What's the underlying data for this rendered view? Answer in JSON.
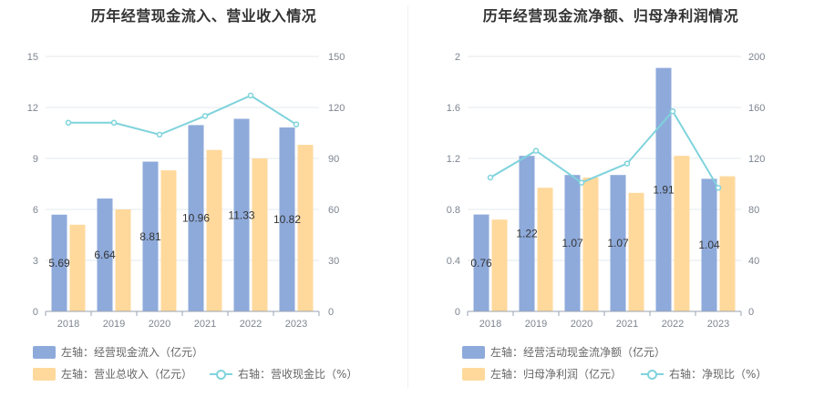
{
  "chart_data": [
    {
      "type": "bar",
      "title": "历年经营现金流入、营业收入情况",
      "categories": [
        "2018",
        "2019",
        "2020",
        "2021",
        "2022",
        "2023"
      ],
      "y_left": {
        "ylim": [
          0,
          15
        ],
        "ticks": [
          "0",
          "3",
          "6",
          "9",
          "12",
          "15"
        ]
      },
      "y_right": {
        "ylim": [
          0,
          150
        ],
        "ticks": [
          "0",
          "30",
          "60",
          "90",
          "120",
          "150"
        ]
      },
      "series": [
        {
          "name": "左轴：经营现金流入（亿元）",
          "kind": "bar",
          "axis": "left",
          "color": "#8eaadb",
          "values": [
            5.69,
            6.64,
            8.81,
            10.96,
            11.33,
            10.82
          ],
          "labels": [
            "5.69",
            "6.64",
            "8.81",
            "10.96",
            "11.33",
            "10.82"
          ]
        },
        {
          "name": "左轴：营业总收入（亿元）",
          "kind": "bar",
          "axis": "left",
          "color": "#ffd99c",
          "values": [
            5.1,
            6.0,
            8.3,
            9.5,
            9.0,
            9.8
          ]
        },
        {
          "name": "右轴：营收现金比（%）",
          "kind": "line",
          "axis": "right",
          "color": "#7fd3dc",
          "values": [
            111,
            111,
            104,
            115,
            127,
            110
          ]
        }
      ],
      "grid": true
    },
    {
      "type": "bar",
      "title": "历年经营现金流净额、归母净利润情况",
      "categories": [
        "2018",
        "2019",
        "2020",
        "2021",
        "2022",
        "2023"
      ],
      "y_left": {
        "ylim": [
          0,
          2
        ],
        "ticks": [
          "0",
          "0.4",
          "0.8",
          "1.2",
          "1.6",
          "2"
        ]
      },
      "y_right": {
        "ylim": [
          0,
          200
        ],
        "ticks": [
          "0",
          "40",
          "80",
          "120",
          "160",
          "200"
        ]
      },
      "series": [
        {
          "name": "左轴：经营活动现金流净额（亿元）",
          "kind": "bar",
          "axis": "left",
          "color": "#8eaadb",
          "values": [
            0.76,
            1.22,
            1.07,
            1.07,
            1.91,
            1.04
          ],
          "labels": [
            "0.76",
            "1.22",
            "1.07",
            "1.07",
            "1.91",
            "1.04"
          ]
        },
        {
          "name": "左轴：归母净利润（亿元）",
          "kind": "bar",
          "axis": "left",
          "color": "#ffd99c",
          "values": [
            0.72,
            0.97,
            1.05,
            0.93,
            1.22,
            1.06
          ]
        },
        {
          "name": "右轴：净现比（%）",
          "kind": "line",
          "axis": "right",
          "color": "#7fd3dc",
          "values": [
            105,
            126,
            101,
            116,
            157,
            97
          ]
        }
      ],
      "grid": true
    }
  ]
}
